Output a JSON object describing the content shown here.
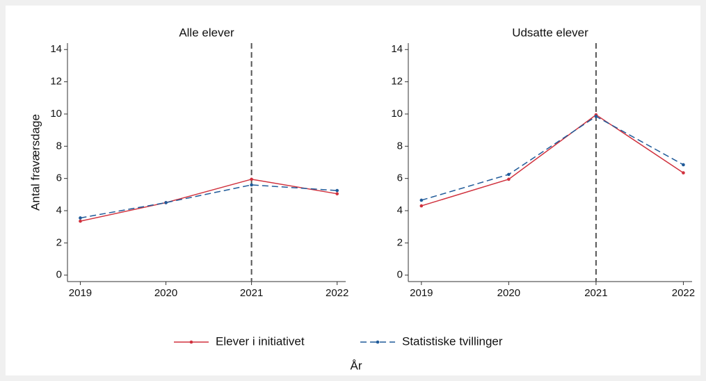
{
  "chart_data": [
    {
      "type": "line",
      "title": "Alle elever",
      "ylabel": "Antal fraværsdage",
      "xlabel": "År",
      "x": [
        2019,
        2020,
        2021,
        2022
      ],
      "xlim": [
        2018.85,
        2022.1
      ],
      "xticks": [
        2019,
        2020,
        2021,
        2022
      ],
      "ylim": [
        -0.4,
        14.4
      ],
      "yticks": [
        0,
        2,
        4,
        6,
        8,
        10,
        12,
        14
      ],
      "vline": 2021,
      "series": [
        {
          "name": "Elever i initiativet",
          "color": "#d0313d",
          "values": [
            3.35,
            4.5,
            5.95,
            5.05
          ]
        },
        {
          "name": "Statistiske tvillinger",
          "color": "#1f5a99",
          "values": [
            3.55,
            4.5,
            5.6,
            5.25
          ]
        }
      ]
    },
    {
      "type": "line",
      "title": "Udsatte elever",
      "x": [
        2019,
        2020,
        2021,
        2022
      ],
      "xlim": [
        2018.85,
        2022.1
      ],
      "xticks": [
        2019,
        2020,
        2021,
        2022
      ],
      "ylim": [
        -0.4,
        14.4
      ],
      "yticks": [
        0,
        2,
        4,
        6,
        8,
        10,
        12,
        14
      ],
      "vline": 2021,
      "series": [
        {
          "color": "#d0313d",
          "values": [
            4.3,
            5.95,
            9.95,
            6.35
          ]
        },
        {
          "color": "#1f5a99",
          "values": [
            4.65,
            6.25,
            9.85,
            6.85
          ]
        }
      ]
    }
  ]
}
